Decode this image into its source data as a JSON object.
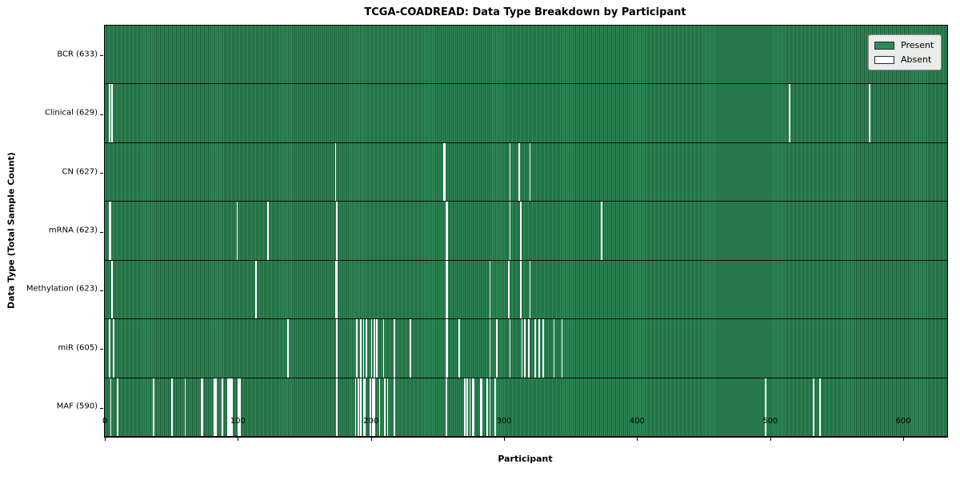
{
  "chart_data": {
    "type": "heatmap",
    "title": "TCGA-COADREAD: Data Type Breakdown by Participant",
    "xlabel": "Participant",
    "ylabel": "Data Type (Total Sample Count)",
    "n_participants": 633,
    "xlim": [
      0,
      633
    ],
    "x_ticks": [
      0,
      100,
      200,
      300,
      400,
      500,
      600
    ],
    "grid": false,
    "legend_position": "upper right",
    "legend_entries": [
      {
        "label": "Present",
        "color": "#2e8b57"
      },
      {
        "label": "Absent",
        "color": "#ffffff"
      }
    ],
    "colors": {
      "present_fill": "#2e8b57",
      "present_edge": "#1d5c3a",
      "absent_fill": "#ffffff",
      "row_separator": "#0a0a0a",
      "legend_background": "#e9ece9",
      "legend_border": "#8f8f8f"
    },
    "rows": [
      {
        "label": "BCR (633)",
        "data_type": "BCR",
        "total_samples": 633,
        "absent_participants": []
      },
      {
        "label": "Clinical (629)",
        "data_type": "Clinical",
        "total_samples": 629,
        "absent_participants": [
          3,
          5,
          514,
          574
        ]
      },
      {
        "label": "CN (627)",
        "data_type": "CN",
        "total_samples": 627,
        "absent_participants": [
          173,
          254,
          255,
          304,
          311,
          319
        ]
      },
      {
        "label": "mRNA (623)",
        "data_type": "mRNA",
        "total_samples": 623,
        "absent_participants": [
          3,
          4,
          99,
          122,
          174,
          256,
          257,
          304,
          312,
          373
        ]
      },
      {
        "label": "Methylation (623)",
        "data_type": "Methylation",
        "total_samples": 623,
        "absent_participants": [
          5,
          113,
          173,
          174,
          256,
          257,
          289,
          303,
          312,
          319
        ]
      },
      {
        "label": "miR (605)",
        "data_type": "miR",
        "total_samples": 605,
        "absent_participants": [
          3,
          6,
          137,
          174,
          189,
          192,
          194,
          196,
          200,
          202,
          204,
          209,
          217,
          229,
          256,
          257,
          266,
          289,
          294,
          304,
          313,
          315,
          318,
          323,
          326,
          329,
          337,
          343
        ]
      },
      {
        "label": "MAF (590)",
        "data_type": "MAF",
        "total_samples": 590,
        "absent_participants": [
          4,
          9,
          36,
          50,
          60,
          72,
          73,
          82,
          83,
          88,
          92,
          93,
          94,
          95,
          100,
          101,
          174,
          188,
          190,
          192,
          194,
          195,
          199,
          201,
          202,
          206,
          210,
          212,
          217,
          256,
          270,
          272,
          274,
          276,
          277,
          282,
          283,
          287,
          289,
          293,
          496,
          532,
          537
        ]
      }
    ]
  }
}
